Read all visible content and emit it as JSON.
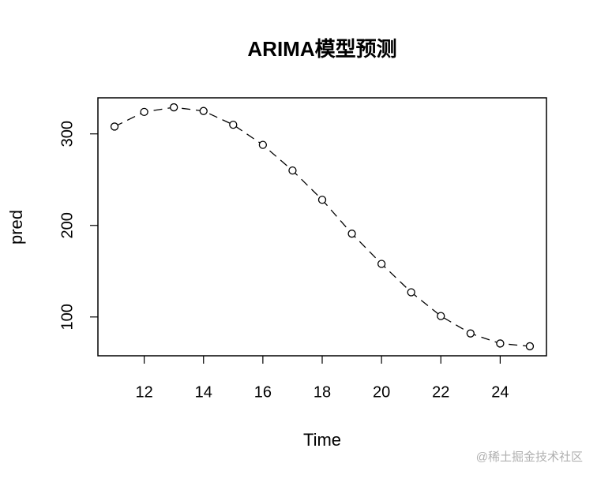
{
  "chart_data": {
    "type": "line",
    "title": "ARIMA模型预测",
    "xlabel": "Time",
    "ylabel": "pred",
    "x": [
      11,
      12,
      13,
      14,
      15,
      16,
      17,
      18,
      19,
      20,
      21,
      22,
      23,
      24,
      25
    ],
    "series": [
      {
        "name": "pred",
        "color": "#000000",
        "values": [
          308,
          324,
          329,
          325,
          310,
          288,
          260,
          228,
          191,
          158,
          127,
          101,
          82,
          71,
          68
        ]
      }
    ],
    "xlim": [
      10.44,
      25.56
    ],
    "ylim": [
      57.6,
      339.4
    ],
    "xticks": [
      12,
      14,
      16,
      18,
      20,
      22,
      24
    ],
    "yticks": [
      100,
      200,
      300
    ],
    "watermark": "@稀土掘金技术社区"
  }
}
